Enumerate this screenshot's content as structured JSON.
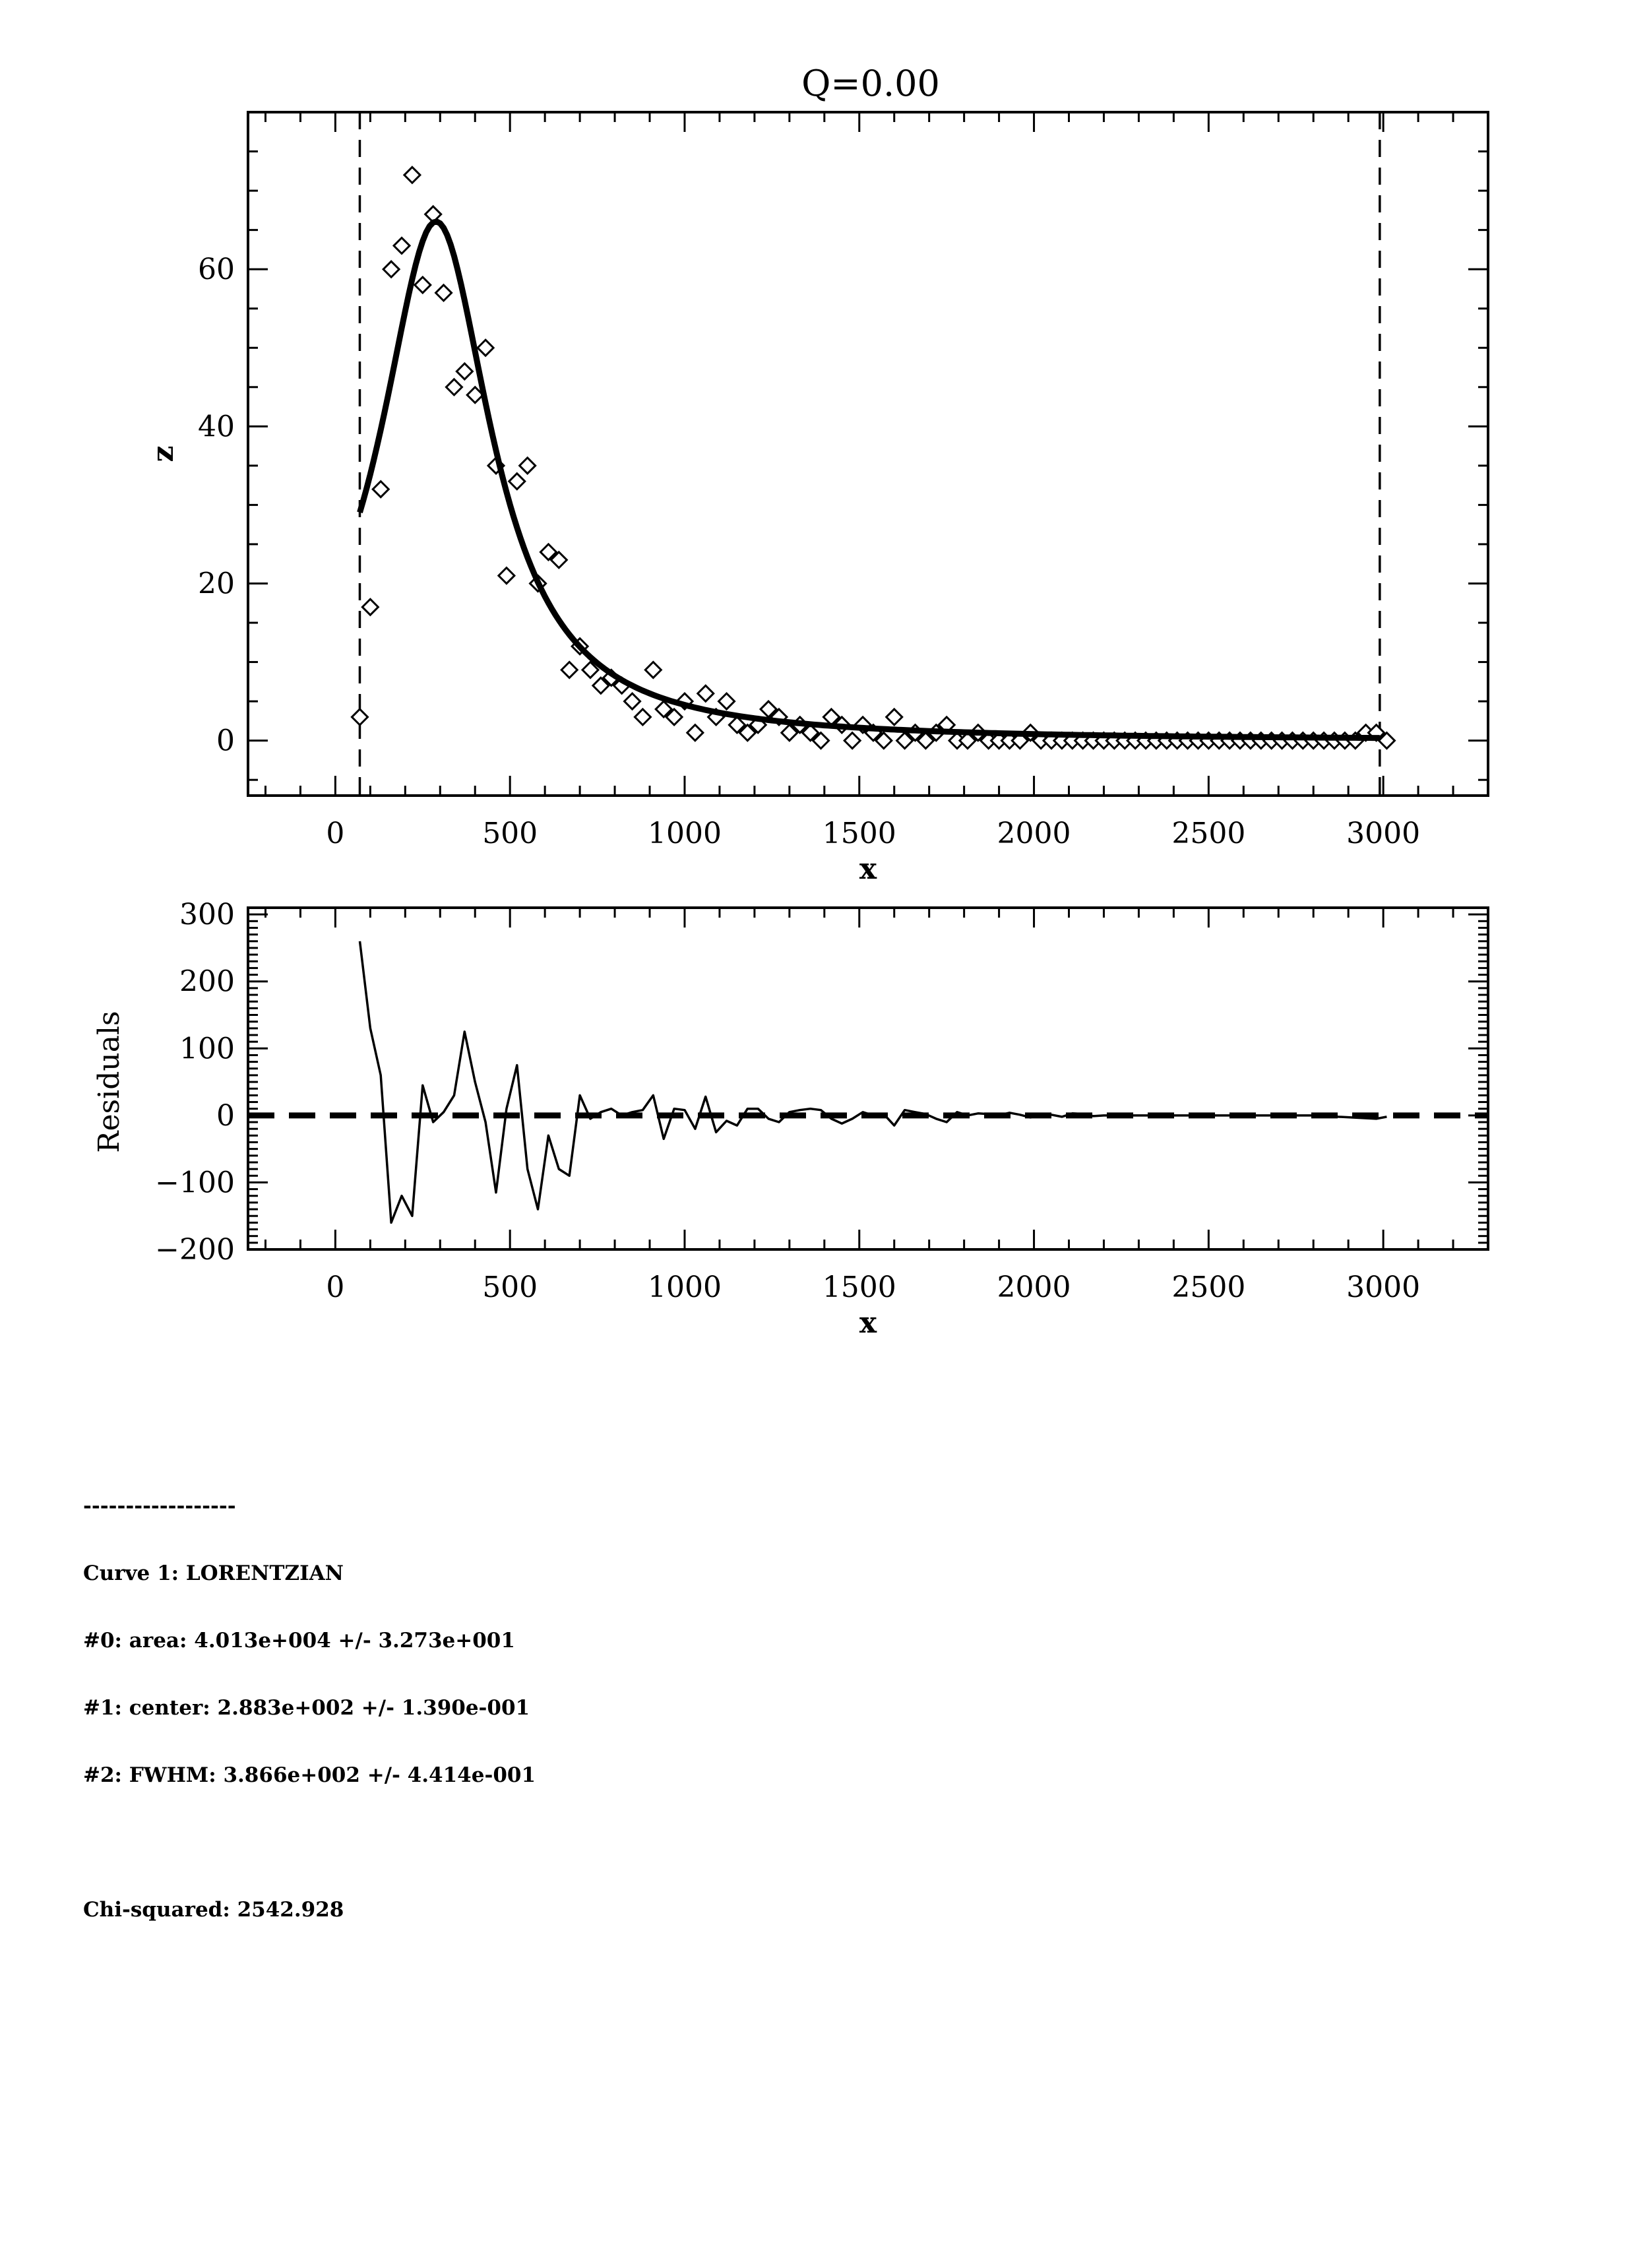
{
  "chart_data": [
    {
      "type": "scatter",
      "title": "Q=0.00",
      "xlabel": "x",
      "ylabel": "z",
      "xlim": [
        -250,
        3300
      ],
      "ylim": [
        -7,
        80
      ],
      "xticks": [
        0,
        500,
        1000,
        1500,
        2000,
        2500,
        3000
      ],
      "xtick_labels": [
        "0",
        "500",
        "1000",
        "1500",
        "2000",
        "2500",
        "3000"
      ],
      "yticks": [
        0,
        20,
        40,
        60
      ],
      "ytick_labels": [
        "0",
        "20",
        "40",
        "60"
      ],
      "fit_range": [
        70,
        2990
      ],
      "series": [
        {
          "name": "",
          "style": "diamond-markers",
          "x": [
            70,
            100,
            130,
            160,
            190,
            220,
            250,
            280,
            310,
            340,
            370,
            400,
            430,
            460,
            490,
            520,
            550,
            580,
            610,
            640,
            670,
            700,
            730,
            760,
            790,
            820,
            850,
            880,
            910,
            940,
            970,
            1000,
            1030,
            1060,
            1090,
            1120,
            1150,
            1180,
            1210,
            1240,
            1270,
            1300,
            1330,
            1360,
            1390,
            1420,
            1450,
            1480,
            1510,
            1540,
            1570,
            1600,
            1630,
            1660,
            1690,
            1720,
            1750,
            1780,
            1810,
            1840,
            1870,
            1900,
            1930,
            1960,
            1990,
            2020,
            2050,
            2080,
            2110,
            2140,
            2170,
            2200,
            2230,
            2260,
            2290,
            2320,
            2350,
            2380,
            2410,
            2440,
            2470,
            2500,
            2530,
            2560,
            2590,
            2620,
            2650,
            2680,
            2710,
            2740,
            2770,
            2800,
            2830,
            2860,
            2890,
            2920,
            2950,
            2980,
            3010
          ],
          "y": [
            3,
            17,
            32,
            60,
            63,
            72,
            58,
            67,
            57,
            45,
            47,
            44,
            50,
            35,
            21,
            33,
            35,
            20,
            24,
            23,
            9,
            12,
            9,
            7,
            8,
            7,
            5,
            3,
            9,
            4,
            3,
            5,
            1,
            6,
            3,
            5,
            2,
            1,
            2,
            4,
            3,
            1,
            2,
            1,
            0,
            3,
            2,
            0,
            2,
            1,
            0,
            3,
            0,
            1,
            0,
            1,
            2,
            0,
            0,
            1,
            0,
            0,
            0,
            0,
            1,
            0,
            0,
            0,
            0,
            0,
            0,
            0,
            0,
            0,
            0,
            0,
            0,
            0,
            0,
            0,
            0,
            0,
            0,
            0,
            0,
            0,
            0,
            0,
            0,
            0,
            0,
            0,
            0,
            0,
            0,
            0,
            1,
            1,
            0
          ]
        },
        {
          "name": "",
          "style": "thick-line",
          "model": "lorentzian",
          "area": 40130,
          "center": 288.3,
          "fwhm": 386.6
        }
      ]
    },
    {
      "type": "line",
      "title": "",
      "xlabel": "x",
      "ylabel": "Residuals",
      "xlim": [
        -250,
        3300
      ],
      "ylim": [
        -200,
        310
      ],
      "xticks": [
        0,
        500,
        1000,
        1500,
        2000,
        2500,
        3000
      ],
      "xtick_labels": [
        "0",
        "500",
        "1000",
        "1500",
        "2000",
        "2500",
        "3000"
      ],
      "yticks": [
        300,
        200,
        100,
        0,
        -100,
        -200
      ],
      "ytick_labels": [
        "300",
        "200",
        "100",
        "0",
        "−100",
        "−200"
      ],
      "zero_line": true,
      "series": [
        {
          "name": "",
          "x": [
            70,
            100,
            130,
            160,
            190,
            220,
            250,
            280,
            310,
            340,
            370,
            400,
            430,
            460,
            490,
            520,
            550,
            580,
            610,
            640,
            670,
            700,
            730,
            760,
            790,
            820,
            850,
            880,
            910,
            940,
            970,
            1000,
            1030,
            1060,
            1090,
            1120,
            1150,
            1180,
            1210,
            1240,
            1270,
            1300,
            1330,
            1360,
            1390,
            1420,
            1450,
            1480,
            1510,
            1540,
            1570,
            1600,
            1630,
            1660,
            1690,
            1720,
            1750,
            1780,
            1810,
            1840,
            1870,
            1900,
            1930,
            1960,
            1990,
            2020,
            2050,
            2080,
            2110,
            2140,
            2170,
            2200,
            2400,
            2600,
            2800,
            2980,
            3010
          ],
          "y": [
            260,
            130,
            60,
            -160,
            -120,
            -150,
            45,
            -10,
            5,
            30,
            125,
            50,
            -10,
            -115,
            10,
            75,
            -80,
            -140,
            -30,
            -80,
            -90,
            30,
            -5,
            5,
            10,
            0,
            5,
            8,
            30,
            -35,
            10,
            8,
            -20,
            28,
            -25,
            -8,
            -15,
            10,
            10,
            -5,
            -10,
            5,
            8,
            10,
            8,
            -5,
            -12,
            -5,
            5,
            0,
            2,
            -15,
            8,
            5,
            2,
            -5,
            -10,
            5,
            0,
            3,
            2,
            0,
            4,
            1,
            -3,
            2,
            1,
            -2,
            3,
            2,
            -1,
            0,
            0,
            0,
            0,
            -5,
            -2
          ]
        }
      ]
    }
  ],
  "fit_results": {
    "separator": "------------------",
    "curve": "Curve 1: LORENTZIAN",
    "p0": "#0: area: 4.013e+004 +/- 3.273e+001",
    "p1": "#1: center: 2.883e+002 +/- 1.390e-001",
    "p2": "#2: FWHM: 3.866e+002 +/- 4.414e-001",
    "chi": "Chi-squared: 2542.928"
  }
}
